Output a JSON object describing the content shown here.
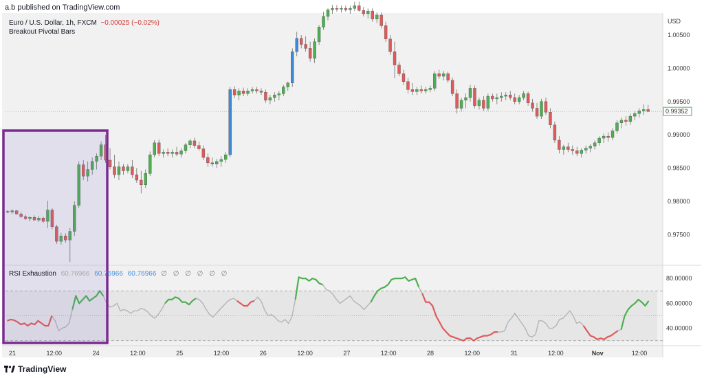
{
  "header": {
    "published": "a.b published on TradingView.com"
  },
  "footer": {
    "brand": "TradingView"
  },
  "legend": {
    "symbol": "Euro / U.S. Dollar, 1h, FXCM",
    "change": "−0.00025 (−0.02%)",
    "indicator": "Breakout Pivotal Bars"
  },
  "rsi_legend": {
    "name": "RSI Exhaustion",
    "v1": "60.76966",
    "v2": "60.76966",
    "v3": "60.76966",
    "placeholders": "∅ ∅ ∅ ∅ ∅ ∅"
  },
  "colors": {
    "bull": "#4caf50",
    "bear": "#e05a5a",
    "breakout": "#3d8ad9",
    "neutral": "#b4b4b4",
    "highlight": "#7b2b8f"
  },
  "chart_data": [
    {
      "type": "candlestick",
      "currency": "USD",
      "ylim": [
        0.9705,
        1.0082
      ],
      "yticks": [
        "1.00500",
        "1.00000",
        "0.99500",
        "0.99000",
        "0.98500",
        "0.98000",
        "0.97500"
      ],
      "last_price": "0.99352",
      "x_labels": [
        "21",
        "12:00",
        "24",
        "12:00",
        "25",
        "12:00",
        "26",
        "12:00",
        "27",
        "12:00",
        "28",
        "12:00",
        "31",
        "12:00",
        "Nov",
        "12:00"
      ],
      "candles": [
        [
          0.9785,
          0.9787,
          0.9782,
          0.9784
        ],
        [
          0.9784,
          0.9788,
          0.9781,
          0.9786
        ],
        [
          0.9786,
          0.9787,
          0.978,
          0.9781
        ],
        [
          0.9781,
          0.9784,
          0.9775,
          0.9777
        ],
        [
          0.9777,
          0.978,
          0.9772,
          0.9774
        ],
        [
          0.9774,
          0.9778,
          0.977,
          0.9776
        ],
        [
          0.9776,
          0.9779,
          0.9771,
          0.9772
        ],
        [
          0.9772,
          0.9778,
          0.9769,
          0.9775
        ],
        [
          0.9775,
          0.9777,
          0.9768,
          0.977
        ],
        [
          0.977,
          0.9801,
          0.976,
          0.9787
        ],
        [
          0.9787,
          0.979,
          0.9758,
          0.9762
        ],
        [
          0.9762,
          0.9765,
          0.9736,
          0.974
        ],
        [
          0.974,
          0.9753,
          0.9735,
          0.9748
        ],
        [
          0.9748,
          0.9752,
          0.9738,
          0.9742
        ],
        [
          0.9742,
          0.976,
          0.9709,
          0.9755
        ],
        [
          0.9755,
          0.98,
          0.9748,
          0.9794
        ],
        [
          0.9794,
          0.986,
          0.979,
          0.9855
        ],
        [
          0.9855,
          0.9862,
          0.9832,
          0.9838
        ],
        [
          0.9838,
          0.986,
          0.983,
          0.9848
        ],
        [
          0.9848,
          0.9866,
          0.984,
          0.986
        ],
        [
          0.986,
          0.9872,
          0.9848,
          0.9868
        ],
        [
          0.9868,
          0.989,
          0.9862,
          0.9885
        ],
        [
          0.9885,
          0.99,
          0.9858,
          0.9862
        ],
        [
          0.9862,
          0.988,
          0.9848,
          0.9852
        ],
        [
          0.9852,
          0.987,
          0.9835,
          0.984
        ],
        [
          0.984,
          0.986,
          0.9832,
          0.9852
        ],
        [
          0.9852,
          0.9856,
          0.984,
          0.9846
        ],
        [
          0.9846,
          0.9856,
          0.9842,
          0.9852
        ],
        [
          0.9852,
          0.9862,
          0.9835,
          0.984
        ],
        [
          0.984,
          0.985,
          0.9828,
          0.9832
        ],
        [
          0.9832,
          0.9846,
          0.9812,
          0.9825
        ],
        [
          0.9825,
          0.9848,
          0.982,
          0.9842
        ],
        [
          0.9842,
          0.9875,
          0.9838,
          0.987
        ],
        [
          0.987,
          0.9892,
          0.9866,
          0.9888
        ],
        [
          0.9888,
          0.9893,
          0.9868,
          0.9872
        ],
        [
          0.9872,
          0.9878,
          0.9866,
          0.9874
        ],
        [
          0.9874,
          0.988,
          0.9868,
          0.9872
        ],
        [
          0.9872,
          0.9878,
          0.9866,
          0.9874
        ],
        [
          0.9874,
          0.9882,
          0.9868,
          0.9871
        ],
        [
          0.9871,
          0.988,
          0.9866,
          0.9876
        ],
        [
          0.9876,
          0.9888,
          0.9872,
          0.9885
        ],
        [
          0.9885,
          0.9894,
          0.988,
          0.9891
        ],
        [
          0.9891,
          0.9896,
          0.988,
          0.9884
        ],
        [
          0.9884,
          0.989,
          0.9876,
          0.9879
        ],
        [
          0.9879,
          0.9884,
          0.9862,
          0.9866
        ],
        [
          0.9866,
          0.9872,
          0.9852,
          0.9858
        ],
        [
          0.9858,
          0.9866,
          0.9852,
          0.9856
        ],
        [
          0.9856,
          0.9864,
          0.985,
          0.986
        ],
        [
          0.986,
          0.9868,
          0.9852,
          0.9863
        ],
        [
          0.9863,
          0.9874,
          0.9858,
          0.987
        ],
        [
          0.987,
          0.9972,
          0.9866,
          0.9968
        ],
        [
          0.9968,
          0.9973,
          0.9955,
          0.996
        ],
        [
          0.996,
          0.997,
          0.9952,
          0.9966
        ],
        [
          0.9966,
          0.9971,
          0.9958,
          0.9962
        ],
        [
          0.9962,
          0.997,
          0.9958,
          0.9966
        ],
        [
          0.9966,
          0.9972,
          0.9962,
          0.9968
        ],
        [
          0.9968,
          0.9972,
          0.9962,
          0.9966
        ],
        [
          0.9966,
          0.997,
          0.996,
          0.9964
        ],
        [
          0.9964,
          0.9968,
          0.9948,
          0.9952
        ],
        [
          0.9952,
          0.996,
          0.9946,
          0.9956
        ],
        [
          0.9956,
          0.9964,
          0.995,
          0.996
        ],
        [
          0.996,
          0.9966,
          0.9952,
          0.9962
        ],
        [
          0.9962,
          0.9975,
          0.9958,
          0.9972
        ],
        [
          0.9972,
          0.998,
          0.9966,
          0.9978
        ],
        [
          0.9978,
          1.003,
          0.9972,
          1.0025
        ],
        [
          1.0025,
          1.0055,
          1.0018,
          1.0045
        ],
        [
          1.0045,
          1.005,
          1.003,
          1.0036
        ],
        [
          1.0036,
          1.0048,
          1.0025,
          1.003
        ],
        [
          1.003,
          1.004,
          1.001,
          1.0015
        ],
        [
          1.0015,
          1.0045,
          1.0008,
          1.004
        ],
        [
          1.004,
          1.0065,
          1.0035,
          1.0062
        ],
        [
          1.0062,
          1.0085,
          1.0058,
          1.0078
        ],
        [
          1.0078,
          1.009,
          1.0072,
          1.0088
        ],
        [
          1.0088,
          1.0095,
          1.0082,
          1.009
        ],
        [
          1.009,
          1.0095,
          1.0085,
          1.0089
        ],
        [
          1.0089,
          1.0094,
          1.0084,
          1.009
        ],
        [
          1.009,
          1.0094,
          1.0085,
          1.0088
        ],
        [
          1.0088,
          1.0094,
          1.0082,
          1.009
        ],
        [
          1.009,
          1.01,
          1.0086,
          1.0094
        ],
        [
          1.0094,
          1.01,
          1.0085,
          1.0087
        ],
        [
          1.0087,
          1.0092,
          1.0078,
          1.0082
        ],
        [
          1.0082,
          1.009,
          1.0075,
          1.0086
        ],
        [
          1.0086,
          1.009,
          1.007,
          1.0074
        ],
        [
          1.0074,
          1.0084,
          1.0068,
          1.008
        ],
        [
          1.008,
          1.0084,
          1.006,
          1.0064
        ],
        [
          1.0064,
          1.007,
          1.004,
          1.0044
        ],
        [
          1.0044,
          1.005,
          1.002,
          1.0025
        ],
        [
          1.0025,
          1.004,
          0.9985,
          1.0005
        ],
        [
          1.0005,
          1.001,
          0.9988,
          0.9992
        ],
        [
          0.9992,
          0.9998,
          0.9975,
          0.998
        ],
        [
          0.998,
          0.9986,
          0.9962,
          0.9968
        ],
        [
          0.9968,
          0.9978,
          0.996,
          0.9965
        ],
        [
          0.9965,
          0.9972,
          0.996,
          0.9968
        ],
        [
          0.9968,
          0.9974,
          0.9962,
          0.9966
        ],
        [
          0.9966,
          0.9972,
          0.9962,
          0.9968
        ],
        [
          0.9968,
          0.9974,
          0.9964,
          0.997
        ],
        [
          0.997,
          0.9996,
          0.9966,
          0.9992
        ],
        [
          0.9992,
          0.9998,
          0.9984,
          0.9988
        ],
        [
          0.9988,
          0.9996,
          0.9982,
          0.9992
        ],
        [
          0.9992,
          0.9995,
          0.9978,
          0.9982
        ],
        [
          0.9982,
          0.9986,
          0.9958,
          0.9962
        ],
        [
          0.9962,
          0.9968,
          0.9932,
          0.994
        ],
        [
          0.994,
          0.9956,
          0.9935,
          0.9952
        ],
        [
          0.9952,
          0.9962,
          0.994,
          0.9956
        ],
        [
          0.9956,
          0.9975,
          0.995,
          0.997
        ],
        [
          0.997,
          0.9974,
          0.994,
          0.9944
        ],
        [
          0.9944,
          0.9956,
          0.9938,
          0.9952
        ],
        [
          0.9952,
          0.9958,
          0.9936,
          0.994
        ],
        [
          0.994,
          0.9962,
          0.9936,
          0.9958
        ],
        [
          0.9958,
          0.9962,
          0.995,
          0.9954
        ],
        [
          0.9954,
          0.9962,
          0.9946,
          0.9956
        ],
        [
          0.9956,
          0.9964,
          0.995,
          0.9958
        ],
        [
          0.9958,
          0.9964,
          0.9952,
          0.996
        ],
        [
          0.996,
          0.9966,
          0.9952,
          0.9956
        ],
        [
          0.9956,
          0.9962,
          0.9946,
          0.995
        ],
        [
          0.995,
          0.996,
          0.9946,
          0.9956
        ],
        [
          0.9956,
          0.9966,
          0.9952,
          0.9962
        ],
        [
          0.9962,
          0.9965,
          0.9944,
          0.9948
        ],
        [
          0.9948,
          0.9954,
          0.9935,
          0.994
        ],
        [
          0.994,
          0.9948,
          0.9924,
          0.9928
        ],
        [
          0.9928,
          0.9954,
          0.9924,
          0.995
        ],
        [
          0.995,
          0.9956,
          0.993,
          0.9934
        ],
        [
          0.9934,
          0.994,
          0.991,
          0.9915
        ],
        [
          0.9915,
          0.992,
          0.9888,
          0.9892
        ],
        [
          0.9892,
          0.9898,
          0.9872,
          0.9878
        ],
        [
          0.9878,
          0.9885,
          0.987,
          0.9882
        ],
        [
          0.9882,
          0.9888,
          0.9874,
          0.9878
        ],
        [
          0.9878,
          0.9884,
          0.987,
          0.9876
        ],
        [
          0.9876,
          0.9882,
          0.9868,
          0.9872
        ],
        [
          0.9872,
          0.988,
          0.9866,
          0.9877
        ],
        [
          0.9877,
          0.9884,
          0.9872,
          0.988
        ],
        [
          0.988,
          0.9886,
          0.9874,
          0.9883
        ],
        [
          0.9883,
          0.9892,
          0.9878,
          0.9888
        ],
        [
          0.9888,
          0.9898,
          0.9884,
          0.9895
        ],
        [
          0.9895,
          0.9902,
          0.9888,
          0.9898
        ],
        [
          0.9898,
          0.9904,
          0.989,
          0.9896
        ],
        [
          0.9896,
          0.991,
          0.9892,
          0.9906
        ],
        [
          0.9906,
          0.9922,
          0.9902,
          0.9918
        ],
        [
          0.9918,
          0.9926,
          0.991,
          0.9922
        ],
        [
          0.9922,
          0.9928,
          0.9914,
          0.992
        ],
        [
          0.992,
          0.9932,
          0.9915,
          0.9928
        ],
        [
          0.9928,
          0.9936,
          0.9922,
          0.9932
        ],
        [
          0.9932,
          0.994,
          0.9926,
          0.9936
        ],
        [
          0.9936,
          0.9946,
          0.993,
          0.9938
        ],
        [
          0.9938,
          0.9945,
          0.9934,
          0.99352
        ]
      ],
      "breakout_bars": [
        50,
        64,
        65
      ]
    },
    {
      "type": "line",
      "title": "RSI Exhaustion",
      "ylim": [
        26,
        90
      ],
      "yticks": [
        "80.00000",
        "60.00000",
        "40.00000"
      ],
      "bands": [
        30,
        50,
        70
      ],
      "values": [
        46,
        47,
        46.5,
        45,
        43,
        44,
        42,
        44,
        43,
        46,
        44,
        42,
        42,
        50,
        46,
        38,
        40,
        41,
        44,
        55,
        66,
        60,
        63,
        66,
        62,
        64,
        66,
        70,
        66,
        60,
        57,
        58,
        60,
        54,
        55,
        54,
        52,
        54,
        54,
        56,
        55,
        53,
        50,
        48,
        51,
        55,
        60,
        63,
        63,
        65,
        64,
        61,
        61,
        59,
        62,
        64,
        63,
        60,
        55,
        51,
        49,
        52,
        55,
        58,
        61,
        63,
        64,
        62,
        60,
        58,
        58,
        61,
        62,
        65,
        62,
        55,
        50,
        51,
        49,
        46,
        45,
        47,
        44,
        49,
        63,
        81,
        80,
        80,
        78,
        80,
        79,
        76,
        75,
        71,
        70,
        67,
        63,
        60,
        62,
        64,
        66,
        62,
        60,
        58,
        55,
        58,
        61,
        66,
        70,
        72,
        73,
        75,
        79,
        80,
        80,
        80,
        81,
        78,
        79,
        80,
        73,
        68,
        61,
        61,
        58,
        50,
        45,
        40,
        37,
        34,
        33,
        32,
        31,
        30,
        32,
        32,
        30,
        32,
        33,
        34,
        34,
        35,
        37,
        37,
        37,
        38,
        45,
        48,
        52,
        48,
        44,
        40,
        34,
        33,
        35,
        46,
        46,
        44,
        40,
        40,
        42,
        47,
        48,
        51,
        54,
        50,
        44,
        45,
        42,
        38,
        34,
        33,
        31,
        32,
        31,
        33,
        34,
        36,
        38,
        39,
        50,
        55,
        58,
        60,
        63,
        61,
        58,
        62
      ],
      "segments": [
        {
          "color": "bear",
          "from": 0,
          "to": 13
        },
        {
          "color": "bull",
          "from": 19,
          "to": 28
        },
        {
          "color": "bull",
          "from": 46,
          "to": 55
        },
        {
          "color": "bear",
          "from": 67,
          "to": 72
        },
        {
          "color": "bull",
          "from": 84,
          "to": 92
        },
        {
          "color": "bull",
          "from": 106,
          "to": 120
        },
        {
          "color": "bear",
          "from": 121,
          "to": 128
        },
        {
          "color": "bear",
          "from": 128,
          "to": 143
        },
        {
          "color": "bear",
          "from": 168,
          "to": 178
        },
        {
          "color": "bull",
          "from": 179,
          "to": 187
        }
      ]
    }
  ]
}
